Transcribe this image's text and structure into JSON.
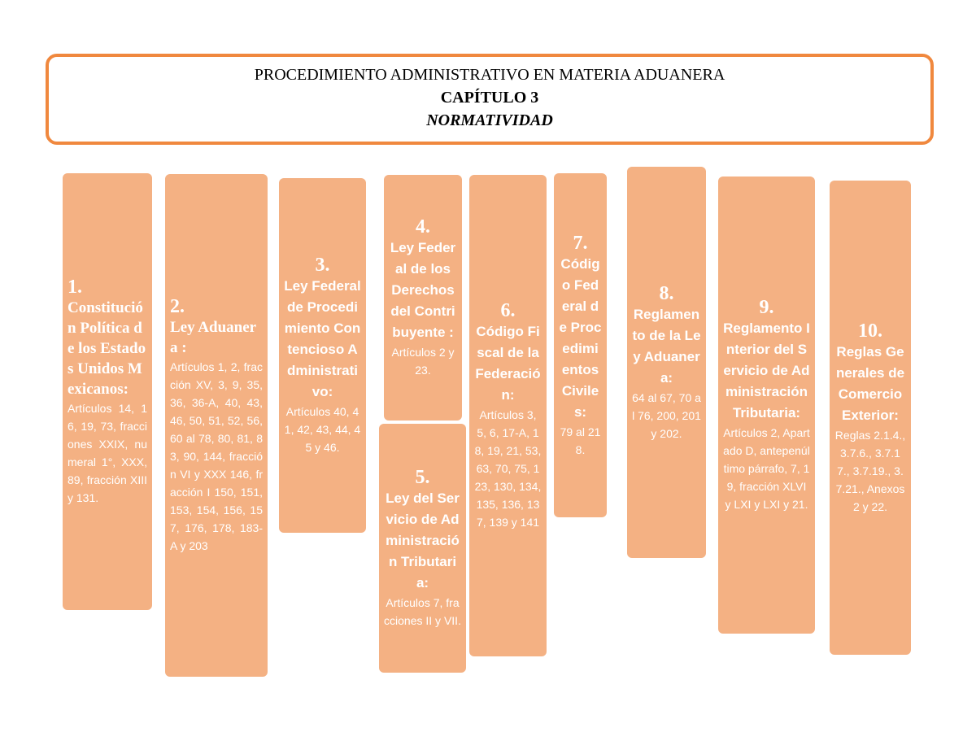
{
  "header": {
    "title": "PROCEDIMIENTO ADMINISTRATIVO EN MATERIA ADUANERA",
    "chapter": "CAPÍTULO 3",
    "subtitle": "NORMATIVIDAD"
  },
  "boxes": [
    {
      "number": "1.",
      "title": "Constitución Política de los Estados Unidos Mexicanos:",
      "body": "Artículos 14, 16, 19, 73, fracciones XXIX, numeral 1°, XXX, 89, fracción XIII y 131."
    },
    {
      "number": "2.",
      "title": "Ley Aduanera :",
      "body": "Artículos 1, 2, fracción XV, 3, 9, 35, 36, 36-A, 40, 43, 46, 50, 51, 52, 56, 60 al 78, 80, 81, 83, 90, 144, fracción VI y XXX 146, fracción I 150, 151, 153, 154, 156, 157, 176, 178, 183-A y 203"
    },
    {
      "number": "3.",
      "title": "Ley Federal de Procedimiento Contencioso Administrativo:",
      "body": "Artículos 40, 41, 42, 43, 44, 45 y 46."
    },
    {
      "number": "4.",
      "title": "Ley Federal de los Derechos del Contribuyente :",
      "body": "Artículos 2 y 23."
    },
    {
      "number": "5.",
      "title": "Ley del Servicio de Administración Tributaria:",
      "body": "Artículos 7, fracciones II y VII."
    },
    {
      "number": "6.",
      "title": "Código Fiscal de la Federación:",
      "body": "Artículos 3, 5, 6, 17-A, 18, 19, 21, 53, 63, 70, 75, 123, 130, 134, 135, 136, 137, 139 y 141"
    },
    {
      "number": "7.",
      "title": "Código Federal de Procedimientos Civiles:",
      "body": "79 al 218."
    },
    {
      "number": "8.",
      "title": "Reglamento de la Ley Aduanera:",
      "body": "64 al 67, 70 al 76, 200, 201 y 202."
    },
    {
      "number": "9.",
      "title": "Reglamento Interior del Servicio de Administración Tributaria:",
      "body": "Artículos 2, Apartado D, antepenúltimo párrafo, 7, 19, fracción XLVI y LXI y LXI y 21."
    },
    {
      "number": "10.",
      "title": "Reglas Generales de Comercio Exterior:",
      "body": "Reglas 2.1.4., 3.7.6., 3.7.17., 3.7.19., 3.7.21., Anexos 2 y 22."
    }
  ]
}
